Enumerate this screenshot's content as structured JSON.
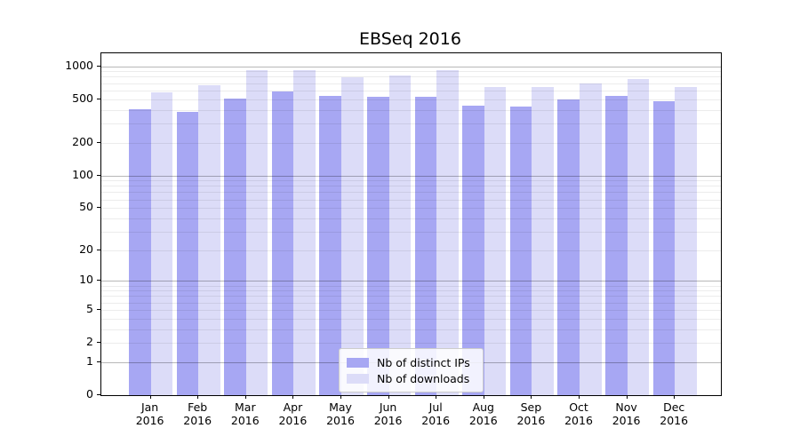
{
  "chart_data": {
    "type": "bar",
    "title": "EBSeq 2016",
    "categories": [
      "Jan",
      "Feb",
      "Mar",
      "Apr",
      "May",
      "Jun",
      "Jul",
      "Aug",
      "Sep",
      "Oct",
      "Nov",
      "Dec"
    ],
    "x_year_label": "2016",
    "series": [
      {
        "name": "Nb of distinct IPs",
        "color": "#a7a7f3",
        "values": [
          403,
          386,
          503,
          590,
          531,
          524,
          522,
          440,
          430,
          495,
          533,
          481
        ]
      },
      {
        "name": "Nb of downloads",
        "color": "#dcdcf8",
        "values": [
          575,
          676,
          916,
          914,
          791,
          819,
          927,
          648,
          649,
          699,
          770,
          641
        ]
      }
    ],
    "yscale": "log1p",
    "y_ticks": [
      0,
      1,
      2,
      5,
      10,
      20,
      50,
      100,
      200,
      500,
      1000
    ],
    "y_gridlines_major": [
      1,
      10,
      100,
      1000
    ],
    "ylim": [
      0,
      1312
    ],
    "xlabel": "",
    "ylabel": "",
    "grid": "horizontal-log-minor",
    "legend_position": "lower-center"
  }
}
